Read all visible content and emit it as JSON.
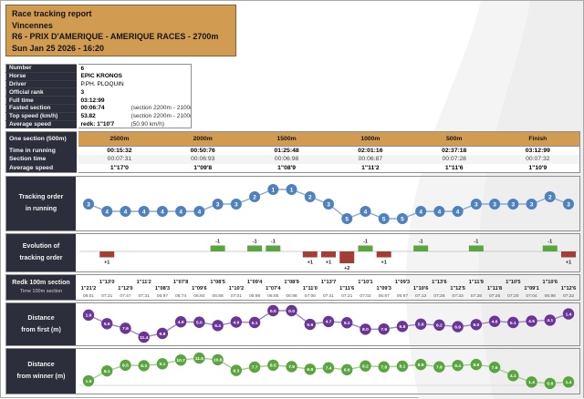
{
  "header": {
    "line1": "Race tracking report",
    "line2": "Vincennes",
    "line3": "R6 - PRIX D'AMERIQUE - AMERIQUE RACES - 2700m",
    "line4": "Sun Jan 25 2026 - 16:20"
  },
  "info": {
    "rows": [
      {
        "label": "Number",
        "value": "6",
        "note": ""
      },
      {
        "label": "Horse",
        "value": "EPIC KRONOS",
        "note": ""
      },
      {
        "label": "Driver",
        "value": "P.PH. PLOQUIN",
        "note": ""
      },
      {
        "label": "Official rank",
        "value": "3",
        "note": ""
      },
      {
        "label": "Full time",
        "value": "03:12:99",
        "note": ""
      },
      {
        "label": "Fasted section",
        "value": "00:06:74",
        "note": "(section 2200m - 2100m)"
      },
      {
        "label": "Top speed (km/h)",
        "value": "53.82",
        "note": "(section 2200m - 2100m)"
      },
      {
        "label": "Average speed",
        "value": "redk: 1\"10'7",
        "note": "(50.90 km/h)"
      }
    ]
  },
  "sections": {
    "corner_label": "One section (500m)",
    "columns": [
      "2500m",
      "2000m",
      "1500m",
      "1000m",
      "500m",
      "Finish"
    ],
    "rows": [
      {
        "label": "Time in running",
        "values": [
          "00:15:32",
          "00:50:76",
          "01:25:48",
          "02:01:16",
          "02:37:18",
          "03:12:99"
        ]
      },
      {
        "label": "Section time",
        "values": [
          "00:07:31",
          "00:06:93",
          "00:06:98",
          "00:06:87",
          "00:07:28",
          "00:07:32"
        ]
      },
      {
        "label": "Average speed",
        "values": [
          "1\"17'0",
          "1\"09'8",
          "1\"08'9",
          "1\"11'2",
          "1\"11'6",
          "1\"10'9"
        ]
      }
    ]
  },
  "chart_rows": {
    "tracking_label1": "Tracking order",
    "tracking_label2": "in running",
    "evolution_label1": "Evolution of",
    "evolution_label2": "tracking order",
    "redk_label1": "Redk 100m section",
    "redk_label2": "Time 100m section",
    "dfirst_label1": "Distance",
    "dfirst_label2": "from first (m)",
    "dwinner_label1": "Distance",
    "dwinner_label2": "from winner (m)"
  },
  "chart_data": [
    {
      "type": "line",
      "name": "tracking_order_in_running",
      "values": [
        3,
        4,
        4,
        4,
        4,
        4,
        4,
        3,
        3,
        2,
        1,
        1,
        2,
        3,
        5,
        4,
        5,
        5,
        4,
        4,
        4,
        3,
        3,
        3,
        3,
        2,
        3
      ],
      "ylim": [
        1,
        5
      ],
      "inverted": true,
      "marker_color": "#4f81bd",
      "line_color": "#85abd6"
    },
    {
      "type": "bar",
      "name": "evolution_of_tracking_order",
      "values": [
        0,
        1,
        0,
        0,
        0,
        0,
        0,
        -1,
        0,
        -1,
        -1,
        0,
        1,
        1,
        2,
        -1,
        1,
        0,
        -1,
        0,
        0,
        -1,
        0,
        0,
        0,
        -1,
        1
      ],
      "positive_color": "#a33e36",
      "negative_color": "#5aa53f",
      "note": "positive = lost positions (red, below axis), negative = gained (green, above axis)"
    },
    {
      "type": "table",
      "name": "redk_100m_section",
      "redk_values": [
        "1\"21'2",
        "1\"13'0",
        "1\"12'0",
        "1\"11'2",
        "1\"08'3",
        "1\"07'8",
        "1\"09'6",
        "1\"08'5",
        "1\"10'2",
        "1\"09'4",
        "1\"07'4",
        "1\"08'9",
        "1\"11'0",
        "1\"13'7",
        "1\"11'6",
        "1\"10'1",
        "1\"09'3",
        "1\"09'3",
        "1\"10'6",
        "1\"13'6",
        "1\"12'5",
        "1\"11'9",
        "1\"11'8",
        "1\"10'5",
        "1\"09'1",
        "1\"10'6",
        "1\"12'6"
      ],
      "time_values": [
        "08:01",
        "07:31",
        "07:47",
        "07:31",
        "06:97",
        "06:74",
        "06:93",
        "06:88",
        "07:01",
        "06:98",
        "06:85",
        "06:98",
        "07:06",
        "07:41",
        "07:21",
        "07:02",
        "06:87",
        "06:97",
        "07:13",
        "07:28",
        "07:33",
        "07:28",
        "07:25",
        "07:20",
        "07:04",
        "06:98",
        "07:32"
      ]
    },
    {
      "type": "line",
      "name": "distance_from_first_m",
      "values": [
        1.9,
        5.6,
        7.6,
        11.4,
        9.8,
        4.8,
        5.0,
        6.4,
        4.9,
        5.1,
        0.0,
        0.0,
        5.9,
        4.7,
        5.2,
        8.0,
        7.9,
        6.8,
        5.8,
        6.2,
        6.9,
        6.0,
        4.6,
        5.1,
        4.5,
        4.1,
        1.4
      ],
      "ylim": [
        0,
        12
      ],
      "inverted": true,
      "marker_color": "#6a3596",
      "line_color": "#a186c4"
    },
    {
      "type": "line",
      "name": "distance_from_winner_m",
      "values": [
        1.9,
        6.1,
        8.5,
        8.3,
        9.1,
        10.7,
        11.5,
        10.8,
        6.3,
        7.7,
        8.5,
        7.9,
        6.8,
        7.4,
        6.6,
        8.2,
        7.8,
        8.1,
        8.8,
        7.8,
        8.4,
        8.8,
        7.6,
        4.1,
        1.4,
        0.8,
        1.4
      ],
      "ylim": [
        0,
        12
      ],
      "inverted": false,
      "marker_color": "#5aa53f",
      "line_color": "#a3cb8e"
    }
  ]
}
